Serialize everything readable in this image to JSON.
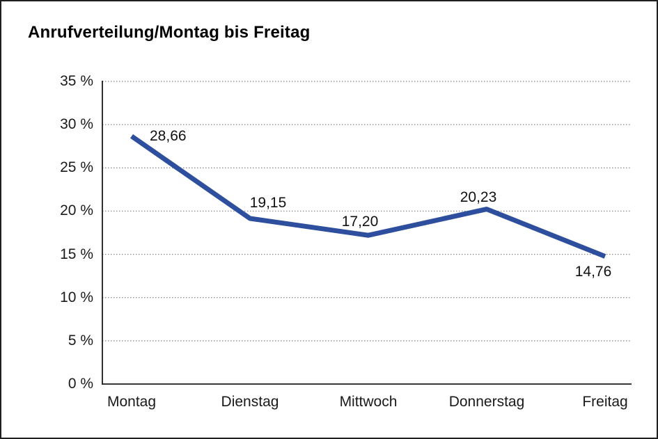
{
  "page": {
    "title": "Anrufverteilung/Montag bis Freitag"
  },
  "chart_data": {
    "type": "line",
    "title": "Anrufverteilung/Montag bis Freitag",
    "categories": [
      "Montag",
      "Dienstag",
      "Mittwoch",
      "Donnerstag",
      "Freitag"
    ],
    "values": [
      28.66,
      19.15,
      17.2,
      20.23,
      14.76
    ],
    "point_labels": [
      "28,66",
      "19,15",
      "17,20",
      "20,23",
      "14,76"
    ],
    "xlabel": "",
    "ylabel": "",
    "ylim": [
      0,
      35
    ],
    "ytick_step": 5,
    "ytick_labels": [
      "0 %",
      "5 %",
      "10 %",
      "15 %",
      "20 %",
      "25 %",
      "30 %",
      "35 %"
    ],
    "grid": "horizontal-dotted",
    "legend_position": "none",
    "line_color": "#2e4f9e",
    "axis_color": "#1a1a1a",
    "grid_color": "#858585",
    "label_color": "#111111"
  }
}
